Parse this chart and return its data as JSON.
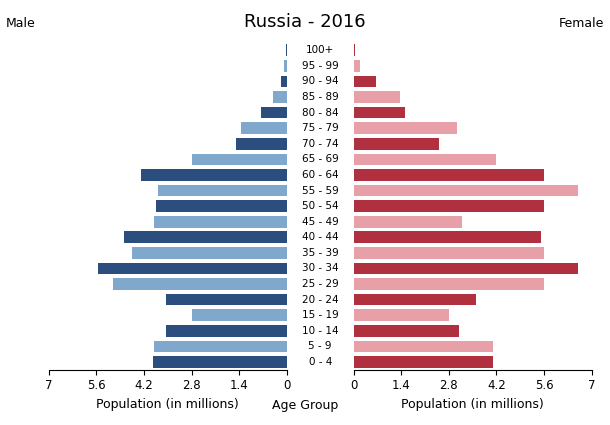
{
  "title": "Russia - 2016",
  "male_label": "Male",
  "female_label": "Female",
  "xlabel_left": "Population (in millions)",
  "xlabel_center": "Age Group",
  "xlabel_right": "Population (in millions)",
  "age_groups": [
    "0 - 4",
    "5 - 9",
    "10 - 14",
    "15 - 19",
    "20 - 24",
    "25 - 29",
    "30 - 34",
    "35 - 39",
    "40 - 44",
    "45 - 49",
    "50 - 54",
    "55 - 59",
    "60 - 64",
    "65 - 69",
    "70 - 74",
    "75 - 79",
    "80 - 84",
    "85 - 89",
    "90 - 94",
    "95 - 99",
    "100+"
  ],
  "male_values": [
    3.95,
    3.9,
    3.55,
    2.8,
    3.55,
    5.1,
    5.55,
    4.55,
    4.8,
    3.9,
    3.85,
    3.8,
    4.3,
    2.8,
    1.5,
    1.35,
    0.75,
    0.4,
    0.18,
    0.08,
    0.02
  ],
  "female_values": [
    4.1,
    4.1,
    3.1,
    2.8,
    3.6,
    5.6,
    6.6,
    5.6,
    5.5,
    3.2,
    5.6,
    6.6,
    5.6,
    4.2,
    2.5,
    3.05,
    1.5,
    1.35,
    0.65,
    0.18,
    0.05
  ],
  "male_colors": [
    "#2b4e7e",
    "#7fa8cc",
    "#2b4e7e",
    "#7fa8cc",
    "#2b4e7e",
    "#7fa8cc",
    "#2b4e7e",
    "#7fa8cc",
    "#2b4e7e",
    "#7fa8cc",
    "#2b4e7e",
    "#7fa8cc",
    "#2b4e7e",
    "#7fa8cc",
    "#2b4e7e",
    "#7fa8cc",
    "#2b4e7e",
    "#7fa8cc",
    "#2b4e7e",
    "#7fa8cc",
    "#2b4e7e"
  ],
  "female_colors": [
    "#b03040",
    "#e8a0a8",
    "#b03040",
    "#e8a0a8",
    "#b03040",
    "#e8a0a8",
    "#b03040",
    "#e8a0a8",
    "#b03040",
    "#e8a0a8",
    "#b03040",
    "#e8a0a8",
    "#b03040",
    "#e8a0a8",
    "#b03040",
    "#e8a0a8",
    "#b03040",
    "#e8a0a8",
    "#b03040",
    "#e8a0a8",
    "#b03040"
  ],
  "xlim": 7.0,
  "xticks_left": [
    7,
    5.6,
    4.2,
    2.8,
    1.4,
    0
  ],
  "xtick_labels_left": [
    "7",
    "5.6",
    "4.2",
    "2.8",
    "1.4",
    "0"
  ],
  "xticks_right": [
    0,
    1.4,
    2.8,
    4.2,
    5.6,
    7
  ],
  "xtick_labels_right": [
    "0",
    "1.4",
    "2.8",
    "4.2",
    "5.6",
    "7"
  ],
  "background_color": "#ffffff",
  "title_fontsize": 13,
  "label_fontsize": 9,
  "tick_fontsize": 8.5,
  "age_fontsize": 7.5,
  "bar_height": 0.75
}
